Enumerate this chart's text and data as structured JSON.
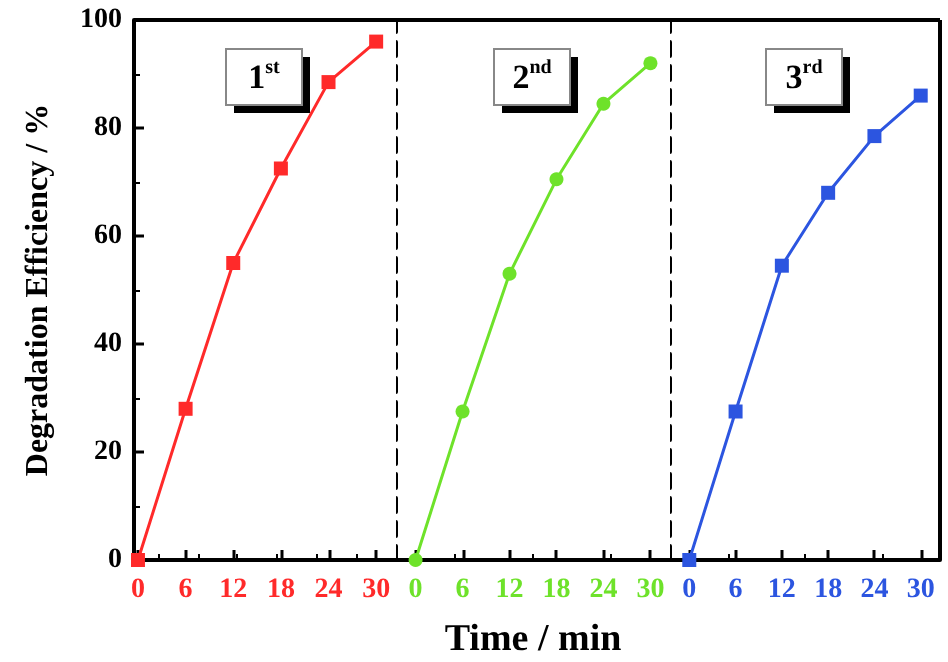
{
  "chart_data": [
    {
      "type": "line",
      "ylabel": "Degradation Efficiency / %",
      "annotations": [
        "1$^{st}$"
      ],
      "x": [
        0,
        6,
        12,
        18,
        24,
        30
      ],
      "series": [
        {
          "color": "#ff2a2a",
          "values": [
            0,
            28,
            55,
            72.5,
            88.5,
            96
          ]
        }
      ],
      "xlim": [
        -0.5,
        32.5
      ],
      "xticks": [
        0,
        6,
        12,
        18,
        24,
        30
      ],
      "ylim": [
        0,
        100
      ],
      "yticks": [
        0,
        20,
        40,
        60,
        80,
        100
      ],
      "marker": "square",
      "grid": false
    },
    {
      "type": "line",
      "xlabel": "Time / min",
      "annotations": [
        "2$^{nd}$"
      ],
      "x": [
        0,
        6,
        12,
        18,
        24,
        30
      ],
      "series": [
        {
          "color": "#6ee22a",
          "values": [
            0,
            27.5,
            53,
            70.5,
            84.5,
            92
          ]
        }
      ],
      "xlim": [
        -2.5,
        32.5
      ],
      "xticks": [
        0,
        6,
        12,
        18,
        24,
        30
      ],
      "ylim": [
        0,
        100
      ],
      "yticks": [
        0,
        20,
        40,
        60,
        80,
        100
      ],
      "marker": "circle",
      "tick_labels": "x",
      "grid": false
    },
    {
      "type": "line",
      "annotations": [
        "3$^{rd}$"
      ],
      "x": [
        0,
        6,
        12,
        18,
        24,
        30
      ],
      "series": [
        {
          "color": "#2c55e0",
          "values": [
            0,
            27.5,
            54.5,
            68,
            78.5,
            86
          ]
        }
      ],
      "xlim": [
        -2.5,
        32.5
      ],
      "xticks": [
        0,
        6,
        12,
        18,
        24,
        30
      ],
      "ylim": [
        0,
        100
      ],
      "yticks": [
        0,
        20,
        40,
        60,
        80,
        100
      ],
      "marker": "square",
      "tick_labels": "x",
      "grid": false
    }
  ]
}
